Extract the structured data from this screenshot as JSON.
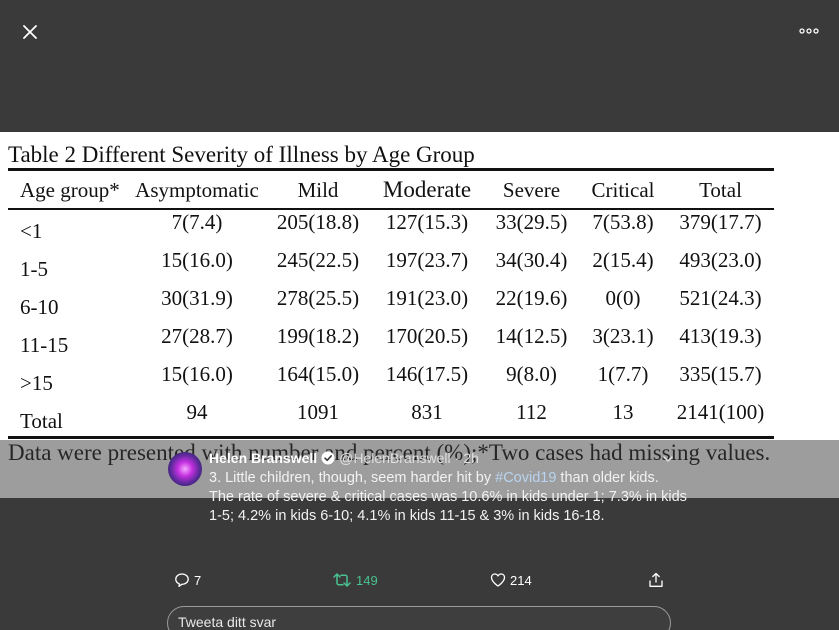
{
  "viewer": {
    "close_icon": "close-icon",
    "more_icon": "more-horizontal-icon"
  },
  "media": {
    "table_title": "Table 2 Different Severity of Illness by Age Group",
    "columns": [
      "Age group*",
      "Asymptomatic",
      "Mild",
      "Moderate",
      "Severe",
      "Critical",
      "Total"
    ],
    "rows": [
      [
        "<1",
        "7(7.4)",
        "205(18.8)",
        "127(15.3)",
        "33(29.5)",
        "7(53.8)",
        "379(17.7)"
      ],
      [
        "1-5",
        "15(16.0)",
        "245(22.5)",
        "197(23.7)",
        "34(30.4)",
        "2(15.4)",
        "493(23.0)"
      ],
      [
        "6-10",
        "30(31.9)",
        "278(25.5)",
        "191(23.0)",
        "22(19.6)",
        "0(0)",
        "521(24.3)"
      ],
      [
        "11-15",
        "27(28.7)",
        "199(18.2)",
        "170(20.5)",
        "14(12.5)",
        "3(23.1)",
        "413(19.3)"
      ],
      [
        ">15",
        "15(16.0)",
        "164(15.0)",
        "146(17.5)",
        "9(8.0)",
        "1(7.7)",
        "335(15.7)"
      ],
      [
        "Total",
        "94",
        "1091",
        "831",
        "112",
        "13",
        "2141(100)"
      ]
    ],
    "footnote": "Data were presented with number and percent (%);*Two cases had missing values."
  },
  "tweet": {
    "author_name": "Helen Branswell",
    "handle": "@HelenBranswell",
    "separator": "·",
    "time": "2h",
    "text_line1_before": "3. Little children, though, seem harder hit by ",
    "hashtag": "#Covid19",
    "text_line1_after": " than older kids.",
    "text_line2": "The rate of severe & critical cases was 10.6% in kids under 1; 7.3% in kids",
    "text_line3": "1-5; 4.2% in kids 6-10; 4.1% in kids 11-15 & 3% in kids 16-18."
  },
  "actions": {
    "reply_count": "7",
    "retweet_count": "149",
    "like_count": "214"
  },
  "reply_box": {
    "placeholder": "Tweeta ditt svar"
  },
  "colors": {
    "background": "#3a3a3a",
    "retweet_green": "#49c191",
    "hashtag": "#b8d4f0"
  }
}
